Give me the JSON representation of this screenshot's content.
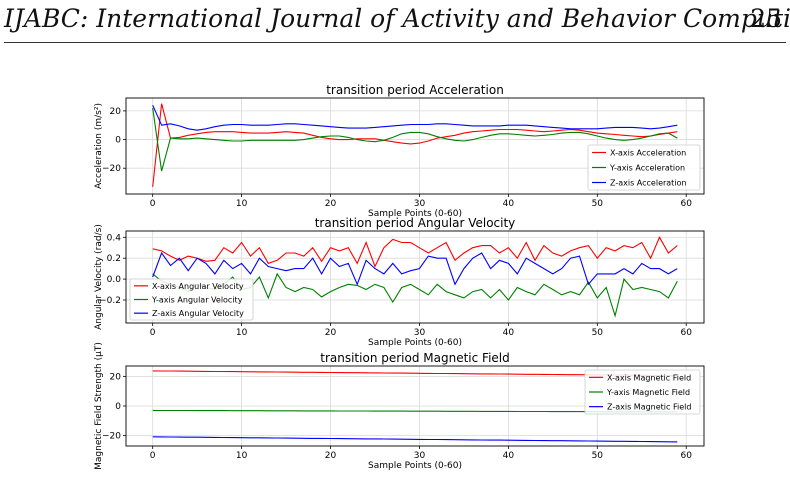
{
  "header": {
    "journal_title": "IJABC: International Journal of Activity and Behavior Computing",
    "page_number": "25"
  },
  "chart_data": [
    {
      "type": "line",
      "title": "transition period Acceleration",
      "xlabel": "Sample Points (0-60)",
      "ylabel": "Acceleration (m/s²)",
      "xlim": [
        -3,
        62
      ],
      "ylim": [
        -38,
        29
      ],
      "xticks": [
        0,
        10,
        20,
        30,
        40,
        50,
        60
      ],
      "yticks": [
        -20,
        0,
        20
      ],
      "grid": true,
      "legend_position": "lower-right",
      "series": [
        {
          "name": "X-axis Acceleration",
          "color": "#ff0000",
          "values": [
            -33,
            25,
            1,
            1.5,
            3,
            4,
            5,
            5.5,
            5.5,
            5.5,
            5,
            4.5,
            4.5,
            4.5,
            5,
            5.5,
            5,
            4.5,
            3,
            1.5,
            0.5,
            0,
            0,
            0.5,
            0.5,
            0.5,
            -0.5,
            -1.5,
            -2.5,
            -3,
            -2.5,
            -1,
            1,
            2,
            3,
            4.5,
            5.5,
            6,
            6.5,
            7,
            7,
            7,
            6.5,
            6,
            5.5,
            6,
            6.5,
            7,
            6.5,
            5.5,
            4.5,
            4,
            3.5,
            3,
            2.5,
            2,
            2.5,
            3.5,
            4.5,
            5.5
          ]
        },
        {
          "name": "Y-axis Acceleration",
          "color": "#008000",
          "values": [
            22,
            -22,
            1,
            0.5,
            0.5,
            1,
            0.5,
            0,
            -0.5,
            -1,
            -1,
            -0.5,
            -0.5,
            -0.5,
            -0.5,
            -0.5,
            -0.5,
            0,
            1,
            2,
            2.5,
            2.5,
            1.5,
            0,
            -1,
            -1.5,
            -0.5,
            1.5,
            4,
            5,
            5,
            4,
            2,
            0.5,
            -0.5,
            -1,
            0,
            1.5,
            3,
            4,
            4,
            3.5,
            3,
            2.5,
            3,
            3.5,
            4.5,
            5,
            5,
            4,
            2.5,
            1,
            0,
            -0.5,
            0,
            1,
            2.5,
            4,
            4.5,
            1
          ]
        },
        {
          "name": "Z-axis Acceleration",
          "color": "#0000ff",
          "values": [
            24,
            10,
            11,
            9.5,
            7.5,
            6.5,
            7.5,
            9,
            10,
            10.5,
            10.5,
            10,
            10,
            10,
            10.5,
            11,
            11,
            10.5,
            10,
            9.5,
            9,
            8.5,
            8,
            8,
            8,
            8.5,
            9,
            9.5,
            10,
            10.5,
            10.5,
            10.5,
            11,
            11,
            10.5,
            10,
            9.5,
            9.5,
            9.5,
            9.5,
            10,
            10,
            10,
            9.5,
            9,
            8.5,
            8,
            7.5,
            7.5,
            7.5,
            7.5,
            8,
            8.5,
            8.5,
            8.5,
            8,
            7.5,
            8,
            9,
            10
          ]
        }
      ]
    },
    {
      "type": "line",
      "title": "transition period Angular Velocity",
      "xlabel": "Sample Points (0-60)",
      "ylabel": "Angular Velocity (rad/s)",
      "xlim": [
        -3,
        62
      ],
      "ylim": [
        -0.42,
        0.46
      ],
      "xticks": [
        0,
        10,
        20,
        30,
        40,
        50,
        60
      ],
      "yticks": [
        -0.2,
        0.0,
        0.2,
        0.4
      ],
      "ytick_labels": [
        "−0.2",
        "0.0",
        "0.2",
        "0.4"
      ],
      "grid": true,
      "legend_position": "lower-left",
      "series": [
        {
          "name": "X-axis Angular Velocity",
          "color": "#ff0000",
          "values": [
            0.29,
            0.27,
            0.22,
            0.18,
            0.22,
            0.2,
            0.17,
            0.18,
            0.3,
            0.25,
            0.35,
            0.22,
            0.3,
            0.15,
            0.18,
            0.25,
            0.25,
            0.22,
            0.3,
            0.17,
            0.3,
            0.27,
            0.3,
            0.15,
            0.35,
            0.12,
            0.3,
            0.38,
            0.35,
            0.35,
            0.3,
            0.25,
            0.3,
            0.35,
            0.18,
            0.25,
            0.3,
            0.32,
            0.32,
            0.25,
            0.3,
            0.2,
            0.35,
            0.18,
            0.32,
            0.25,
            0.22,
            0.27,
            0.3,
            0.32,
            0.2,
            0.3,
            0.27,
            0.32,
            0.3,
            0.35,
            0.2,
            0.4,
            0.25,
            0.32
          ]
        },
        {
          "name": "Y-axis Angular Velocity",
          "color": "#008000",
          "values": [
            0.05,
            -0.02,
            -0.05,
            -0.08,
            -0.12,
            -0.05,
            -0.08,
            -0.1,
            -0.05,
            0.02,
            -0.1,
            -0.08,
            0.02,
            -0.18,
            0.05,
            -0.08,
            -0.12,
            -0.08,
            -0.1,
            -0.17,
            -0.12,
            -0.08,
            -0.05,
            -0.06,
            -0.1,
            -0.05,
            -0.08,
            -0.22,
            -0.08,
            -0.05,
            -0.1,
            -0.15,
            -0.05,
            -0.12,
            -0.15,
            -0.18,
            -0.12,
            -0.1,
            -0.18,
            -0.1,
            -0.2,
            -0.08,
            -0.12,
            -0.15,
            -0.05,
            -0.1,
            -0.15,
            -0.12,
            -0.15,
            -0.03,
            -0.18,
            -0.08,
            -0.35,
            0.0,
            -0.1,
            -0.08,
            -0.1,
            -0.12,
            -0.18,
            -0.02
          ]
        },
        {
          "name": "Z-axis Angular Velocity",
          "color": "#0000ff",
          "values": [
            0.02,
            0.25,
            0.13,
            0.2,
            0.08,
            0.2,
            0.15,
            0.05,
            0.18,
            0.1,
            0.15,
            0.05,
            0.2,
            0.12,
            0.1,
            0.08,
            0.1,
            0.1,
            0.2,
            0.05,
            0.2,
            0.12,
            0.15,
            -0.05,
            0.18,
            0.1,
            0.05,
            0.15,
            0.05,
            0.08,
            0.1,
            0.22,
            0.2,
            0.2,
            -0.05,
            0.1,
            0.2,
            0.25,
            0.1,
            0.18,
            0.15,
            0.05,
            0.2,
            0.15,
            0.1,
            0.05,
            0.1,
            0.2,
            0.22,
            -0.05,
            0.05,
            0.05,
            0.05,
            0.1,
            0.05,
            0.15,
            0.1,
            0.1,
            0.05,
            0.1
          ]
        }
      ]
    },
    {
      "type": "line",
      "title": "transition period Magnetic Field",
      "xlabel": "Sample Points (0-60)",
      "ylabel": "Magnetic Field Strength (μT)",
      "xlim": [
        -3,
        62
      ],
      "ylim": [
        -27,
        27
      ],
      "xticks": [
        0,
        10,
        20,
        30,
        40,
        50,
        60
      ],
      "yticks": [
        -20,
        0,
        20
      ],
      "grid": true,
      "legend_position": "upper-right",
      "series": [
        {
          "name": "X-axis Magnetic Field",
          "color": "#ff0000",
          "start": 23.7,
          "end": 20.5
        },
        {
          "name": "Y-axis Magnetic Field",
          "color": "#008000",
          "start": -3.0,
          "end": -4.0
        },
        {
          "name": "Z-axis Magnetic Field",
          "color": "#0000ff",
          "start": -20.8,
          "end": -24.2
        }
      ]
    }
  ]
}
